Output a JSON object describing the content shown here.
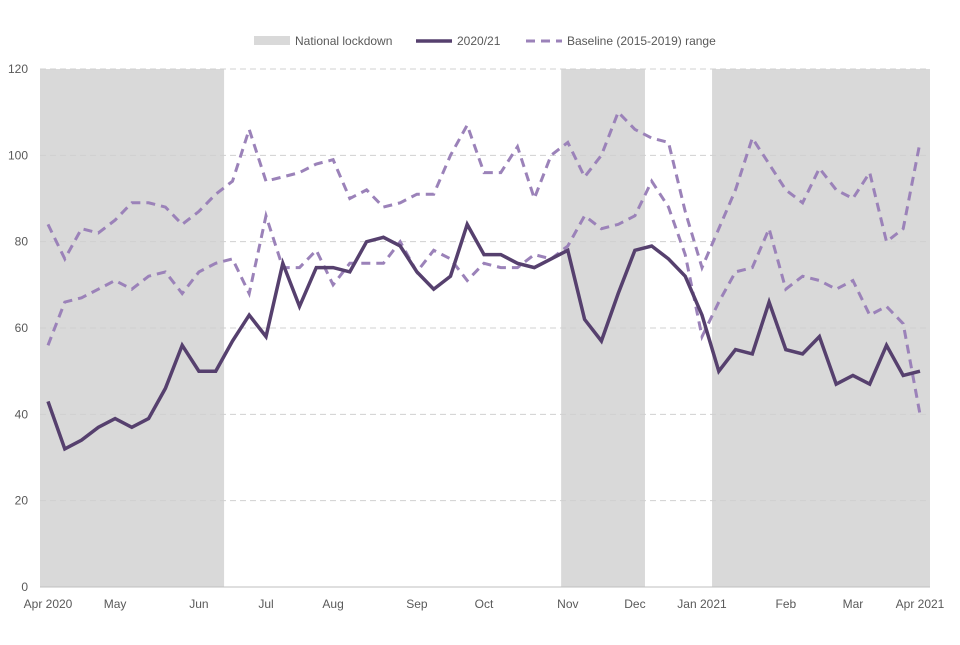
{
  "chart_data": {
    "type": "line",
    "title": "",
    "xlabel": "",
    "ylabel": "",
    "ylim": [
      0,
      120
    ],
    "yticks": [
      "0",
      "20",
      "40",
      "60",
      "80",
      "100",
      "120"
    ],
    "grid": "horizontal-dashed",
    "legend_placement": "top-center",
    "x_tick_labels": [
      {
        "index": 0,
        "label": "Apr 2020"
      },
      {
        "index": 4,
        "label": "May"
      },
      {
        "index": 9,
        "label": "Jun"
      },
      {
        "index": 13,
        "label": "Jul"
      },
      {
        "index": 17,
        "label": "Aug"
      },
      {
        "index": 22,
        "label": "Sep"
      },
      {
        "index": 26,
        "label": "Oct"
      },
      {
        "index": 31,
        "label": "Nov"
      },
      {
        "index": 35,
        "label": "Dec"
      },
      {
        "index": 39,
        "label": "Jan 2021"
      },
      {
        "index": 44,
        "label": "Feb"
      },
      {
        "index": 48,
        "label": "Mar"
      },
      {
        "index": 52,
        "label": "Apr 2021"
      }
    ],
    "shaded_periods": {
      "name": "National lockdown",
      "color": "#d9d9d9",
      "ranges": [
        [
          -0.5,
          10.5
        ],
        [
          30.6,
          35.6
        ],
        [
          39.6,
          52.6
        ]
      ]
    },
    "series": [
      {
        "name": "2020/21",
        "color": "#56406e",
        "style": "solid",
        "values": [
          43,
          32,
          34,
          37,
          39,
          37,
          39,
          46,
          56,
          50,
          50,
          57,
          63,
          58,
          75,
          65,
          74,
          74,
          73,
          80,
          81,
          79,
          73,
          69,
          72,
          84,
          77,
          77,
          75,
          74,
          76,
          78,
          62,
          57,
          68,
          78,
          79,
          76,
          72,
          63,
          50,
          55,
          54,
          66,
          55,
          54,
          58,
          47,
          49,
          47,
          56,
          49,
          50
        ]
      },
      {
        "name": "Baseline (2015-2019) range",
        "color": "#9b82b9",
        "style": "dashed",
        "upper": [
          84,
          76,
          83,
          82,
          85,
          89,
          89,
          88,
          84,
          87,
          91,
          94,
          106,
          94,
          95,
          96,
          98,
          99,
          90,
          92,
          88,
          89,
          91,
          91,
          100,
          107,
          96,
          96,
          102,
          90,
          100,
          103,
          95,
          100,
          110,
          106,
          104,
          103,
          87,
          74,
          83,
          92,
          104,
          98,
          92,
          89,
          97,
          92,
          90,
          96,
          80,
          83,
          103
        ],
        "lower": [
          56,
          66,
          67,
          69,
          71,
          69,
          72,
          73,
          68,
          73,
          75,
          76,
          68,
          86,
          74,
          74,
          78,
          70,
          75,
          75,
          75,
          80,
          73,
          78,
          76,
          71,
          75,
          74,
          74,
          77,
          76,
          79,
          86,
          83,
          84,
          86,
          94,
          88,
          77,
          58,
          66,
          73,
          74,
          83,
          69,
          72,
          71,
          69,
          71,
          63,
          65,
          61,
          40
        ]
      }
    ]
  }
}
